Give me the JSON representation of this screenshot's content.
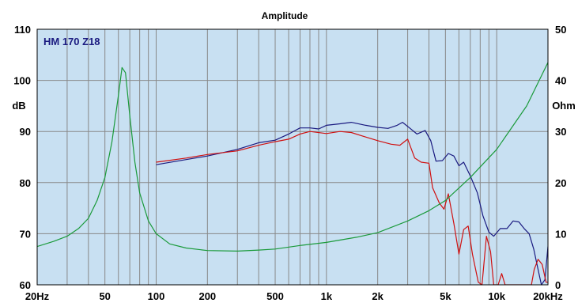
{
  "chart_data": {
    "type": "line",
    "title": "Amplitude",
    "plot_label": "HM 170 Z18",
    "x_scale": "log",
    "xlim": [
      20,
      20000
    ],
    "ylim_left": [
      60,
      110
    ],
    "ylim_right": [
      0,
      50
    ],
    "ylabel_left": "dB",
    "ylabel_right": "Ohm",
    "x_ticks": [
      {
        "value": 20,
        "label": "20Hz"
      },
      {
        "value": 50,
        "label": "50"
      },
      {
        "value": 100,
        "label": "100"
      },
      {
        "value": 200,
        "label": "200"
      },
      {
        "value": 500,
        "label": "500"
      },
      {
        "value": 1000,
        "label": "1k"
      },
      {
        "value": 2000,
        "label": "2k"
      },
      {
        "value": 5000,
        "label": "5k"
      },
      {
        "value": 10000,
        "label": "10k"
      },
      {
        "value": 20000,
        "label": "20kHz"
      }
    ],
    "y_ticks_left": [
      {
        "value": 60,
        "label": "60"
      },
      {
        "value": 70,
        "label": "70"
      },
      {
        "value": 80,
        "label": "80"
      },
      {
        "value": 90,
        "label": "90"
      },
      {
        "value": 100,
        "label": "100"
      },
      {
        "value": 110,
        "label": "110"
      }
    ],
    "y_ticks_right": [
      {
        "value": 0,
        "label": "0"
      },
      {
        "value": 10,
        "label": "10"
      },
      {
        "value": 20,
        "label": "20"
      },
      {
        "value": 30,
        "label": "30"
      },
      {
        "value": 40,
        "label": "40"
      },
      {
        "value": 50,
        "label": "50"
      }
    ],
    "grid": true,
    "colors": {
      "plot_background": "#c8e0f2",
      "grid_line": "#888888",
      "blue_series": "#1a1a80",
      "red_series": "#d01010",
      "green_series": "#1a9a3a"
    },
    "series": [
      {
        "color": "#1a1a80",
        "axis": "left",
        "points": [
          [
            100,
            83.5
          ],
          [
            150,
            84.5
          ],
          [
            200,
            85.2
          ],
          [
            300,
            86.5
          ],
          [
            400,
            87.8
          ],
          [
            500,
            88.3
          ],
          [
            600,
            89.5
          ],
          [
            700,
            90.7
          ],
          [
            800,
            90.7
          ],
          [
            900,
            90.5
          ],
          [
            1000,
            91.2
          ],
          [
            1200,
            91.5
          ],
          [
            1400,
            91.8
          ],
          [
            1700,
            91.2
          ],
          [
            2000,
            90.8
          ],
          [
            2300,
            90.6
          ],
          [
            2600,
            91.2
          ],
          [
            2800,
            91.8
          ],
          [
            3100,
            90.6
          ],
          [
            3400,
            89.5
          ],
          [
            3800,
            90.2
          ],
          [
            4100,
            88.2
          ],
          [
            4400,
            84.2
          ],
          [
            4800,
            84.3
          ],
          [
            5200,
            85.7
          ],
          [
            5600,
            85.2
          ],
          [
            6000,
            83.3
          ],
          [
            6400,
            84.0
          ],
          [
            7000,
            81.3
          ],
          [
            7700,
            78.0
          ],
          [
            8300,
            73.5
          ],
          [
            9000,
            70.3
          ],
          [
            9600,
            69.5
          ],
          [
            10500,
            71.0
          ],
          [
            11500,
            71.0
          ],
          [
            12500,
            72.5
          ],
          [
            13500,
            72.3
          ],
          [
            14500,
            71.0
          ],
          [
            15500,
            70.0
          ],
          [
            16500,
            67.0
          ],
          [
            17500,
            63.0
          ],
          [
            18300,
            60.0
          ],
          [
            19200,
            61.0
          ],
          [
            20000,
            67.5
          ]
        ]
      },
      {
        "color": "#d01010",
        "axis": "left",
        "points": [
          [
            100,
            84.0
          ],
          [
            150,
            84.8
          ],
          [
            200,
            85.5
          ],
          [
            300,
            86.2
          ],
          [
            400,
            87.3
          ],
          [
            500,
            88.0
          ],
          [
            600,
            88.5
          ],
          [
            700,
            89.5
          ],
          [
            800,
            90.0
          ],
          [
            1000,
            89.6
          ],
          [
            1200,
            90.0
          ],
          [
            1400,
            89.8
          ],
          [
            1600,
            89.2
          ],
          [
            2000,
            88.2
          ],
          [
            2400,
            87.5
          ],
          [
            2700,
            87.3
          ],
          [
            3000,
            88.5
          ],
          [
            3300,
            84.8
          ],
          [
            3600,
            84.0
          ],
          [
            4000,
            83.8
          ],
          [
            4200,
            79.0
          ],
          [
            4600,
            76.0
          ],
          [
            4900,
            74.8
          ],
          [
            5200,
            77.8
          ],
          [
            5600,
            72.0
          ],
          [
            6000,
            66.0
          ],
          [
            6400,
            70.8
          ],
          [
            6800,
            71.5
          ],
          [
            7200,
            66.0
          ],
          [
            7800,
            60.5
          ],
          [
            8200,
            60.0
          ],
          [
            8700,
            69.5
          ],
          [
            9200,
            66.5
          ],
          [
            9600,
            60.0
          ],
          [
            10200,
            60.0
          ],
          [
            10700,
            62.2
          ],
          [
            11200,
            60.0
          ],
          [
            16000,
            60.0
          ],
          [
            16600,
            63.0
          ],
          [
            17500,
            65.0
          ],
          [
            18500,
            64.0
          ],
          [
            19500,
            60.5
          ],
          [
            20000,
            60.5
          ]
        ]
      },
      {
        "color": "#1a9a3a",
        "axis": "right",
        "points": [
          [
            20,
            7.5
          ],
          [
            25,
            8.5
          ],
          [
            30,
            9.5
          ],
          [
            35,
            11.0
          ],
          [
            40,
            13.0
          ],
          [
            45,
            16.5
          ],
          [
            50,
            21.0
          ],
          [
            55,
            28.0
          ],
          [
            60,
            37.0
          ],
          [
            63,
            42.5
          ],
          [
            66,
            41.5
          ],
          [
            70,
            33.0
          ],
          [
            75,
            24.0
          ],
          [
            80,
            18.0
          ],
          [
            90,
            12.5
          ],
          [
            100,
            10.0
          ],
          [
            120,
            8.0
          ],
          [
            150,
            7.2
          ],
          [
            200,
            6.7
          ],
          [
            300,
            6.6
          ],
          [
            400,
            6.8
          ],
          [
            500,
            7.0
          ],
          [
            700,
            7.7
          ],
          [
            1000,
            8.3
          ],
          [
            1500,
            9.3
          ],
          [
            2000,
            10.2
          ],
          [
            3000,
            12.5
          ],
          [
            4000,
            14.5
          ],
          [
            5000,
            16.5
          ],
          [
            7000,
            21.0
          ],
          [
            10000,
            26.5
          ],
          [
            15000,
            35.0
          ],
          [
            20000,
            43.5
          ]
        ]
      }
    ]
  }
}
